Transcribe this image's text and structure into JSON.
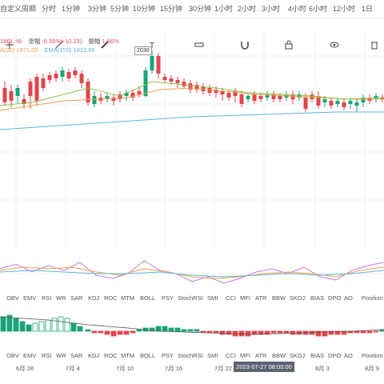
{
  "toolbar": {
    "items": [
      "自定义周期",
      "分时",
      "1分钟",
      "3分钟",
      "5分钟",
      "10分钟",
      "15分钟",
      "30分钟",
      "1小时",
      "2小时",
      "3小时",
      "4小时",
      "6小时",
      "12小时",
      "1日"
    ]
  },
  "legend": {
    "row1_close": "1861.56",
    "change_label": "涨幅",
    "change_value": "-0.55%(-10.23)",
    "amplitude_label": "振幅",
    "amplitude_value": "1.66%",
    "ma_text": "A(30) 1871.05",
    "ema_text": "EMA(150) 1822.65"
  },
  "high_label": "2030",
  "indicator_bar_1": [
    "OBV",
    "EMV",
    "RSI",
    "WR",
    "SAR",
    "KDJ",
    "ROC",
    "MTM",
    "BOLL",
    "PSY",
    "StochRSI",
    "SMI",
    "CCI",
    "MFI",
    "ATR",
    "BBW",
    "SKDJ",
    "BIAS",
    "DPO",
    "AO",
    "Position"
  ],
  "indicator_bar_2": [
    "OBV",
    "EMV",
    "RSI",
    "WR",
    "SAR",
    "KDJ",
    "ROC",
    "MTM",
    "BOLL",
    "PSY",
    "StochRSI",
    "SMI",
    "CCI",
    "MFI",
    "ATR",
    "BBW",
    "SKDJ",
    "BIAS",
    "DPO",
    "AO",
    "Position"
  ],
  "date_axis": [
    "6月 28",
    "7月 4",
    "7月 10",
    "7月 16",
    "7月 22",
    "8月 3",
    "8月 9"
  ],
  "crosshair_time": "2023-07-27 08:00:00",
  "colors": {
    "up": "#1aa37a",
    "down": "#e0464c",
    "ma": "#f0a050",
    "ema": "#5bb6d9",
    "grid": "#eef0f3"
  }
}
